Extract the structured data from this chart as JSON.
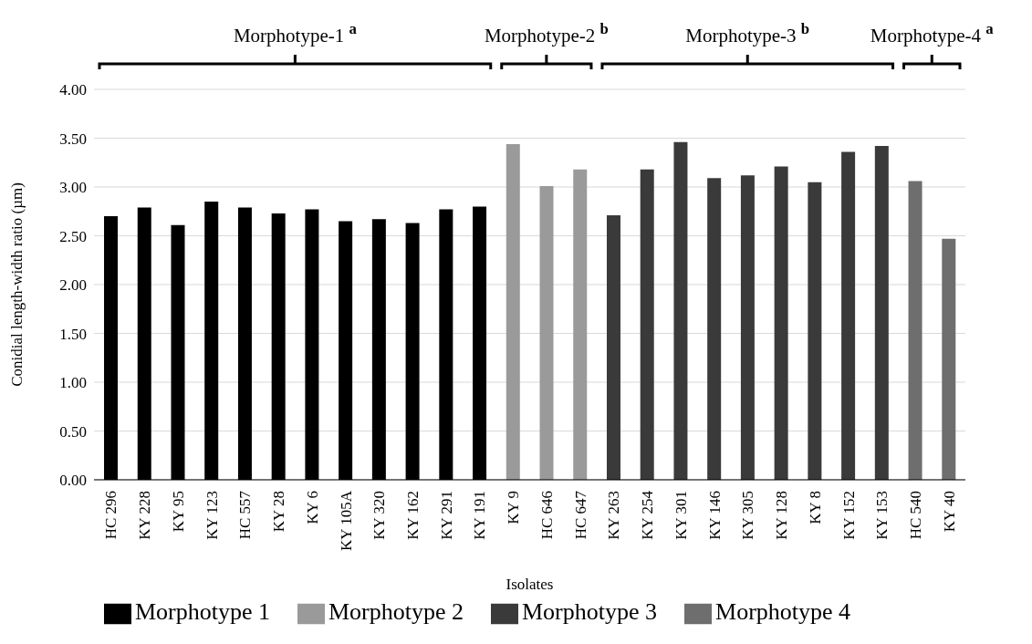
{
  "chart_data": {
    "type": "bar",
    "stacked": true,
    "xlabel": "Isolates",
    "ylabel": "Conidial length-width ratio (µm)",
    "categories": [
      "HC 296",
      "KY 228",
      "KY 95",
      "KY 123",
      "HC 557",
      "KY 28",
      "KY 6",
      "KY 105A",
      "KY 320",
      "KY 162",
      "KY 291",
      "KY 191",
      "KY 9",
      "HC 646",
      "HC 647",
      "KY 263",
      "KY 254",
      "KY 301",
      "KY 146",
      "KY 305",
      "KY 128",
      "KY 8",
      "KY 152",
      "KY 153",
      "HC 540",
      "KY 40"
    ],
    "series": [
      {
        "name": "Morphotype 1",
        "color": "#000000",
        "values": [
          2.7,
          2.79,
          2.61,
          2.85,
          2.79,
          2.73,
          2.77,
          2.65,
          2.67,
          2.63,
          2.77,
          2.8,
          null,
          null,
          null,
          null,
          null,
          null,
          null,
          null,
          null,
          null,
          null,
          null,
          null,
          null
        ]
      },
      {
        "name": "Morphotype 2",
        "color": "#9a9a9a",
        "values": [
          null,
          null,
          null,
          null,
          null,
          null,
          null,
          null,
          null,
          null,
          null,
          null,
          3.44,
          3.01,
          3.18,
          null,
          null,
          null,
          null,
          null,
          null,
          null,
          null,
          null,
          null,
          null
        ]
      },
      {
        "name": "Morphotype 3",
        "color": "#3a3a3a",
        "values": [
          null,
          null,
          null,
          null,
          null,
          null,
          null,
          null,
          null,
          null,
          null,
          null,
          null,
          null,
          null,
          2.71,
          3.18,
          3.46,
          3.09,
          3.12,
          3.21,
          3.05,
          3.36,
          3.42,
          null,
          null
        ]
      },
      {
        "name": "Morphotype 4",
        "color": "#6e6e6e",
        "values": [
          null,
          null,
          null,
          null,
          null,
          null,
          null,
          null,
          null,
          null,
          null,
          null,
          null,
          null,
          null,
          null,
          null,
          null,
          null,
          null,
          null,
          null,
          null,
          null,
          3.06,
          2.47
        ]
      }
    ],
    "ylim": [
      0,
      4
    ],
    "yticks": [
      {
        "value": 0,
        "label": "0.00"
      },
      {
        "value": 0.5,
        "label": "0.50"
      },
      {
        "value": 1,
        "label": "1.00"
      },
      {
        "value": 1.5,
        "label": "1.50"
      },
      {
        "value": 2,
        "label": "2.00"
      },
      {
        "value": 2.5,
        "label": "2.50"
      },
      {
        "value": 3,
        "label": "3.00"
      },
      {
        "value": 3.5,
        "label": "3.50"
      },
      {
        "value": 4,
        "label": "4.00"
      }
    ],
    "grid": "y",
    "legend": "bottom",
    "annotations": [
      "Morphotype-1 $^{a}$",
      "Morphotype-2 $^{b}$",
      "Morphotype-3 $^{b}$",
      "Morphotype-4 $^{a}$"
    ]
  }
}
